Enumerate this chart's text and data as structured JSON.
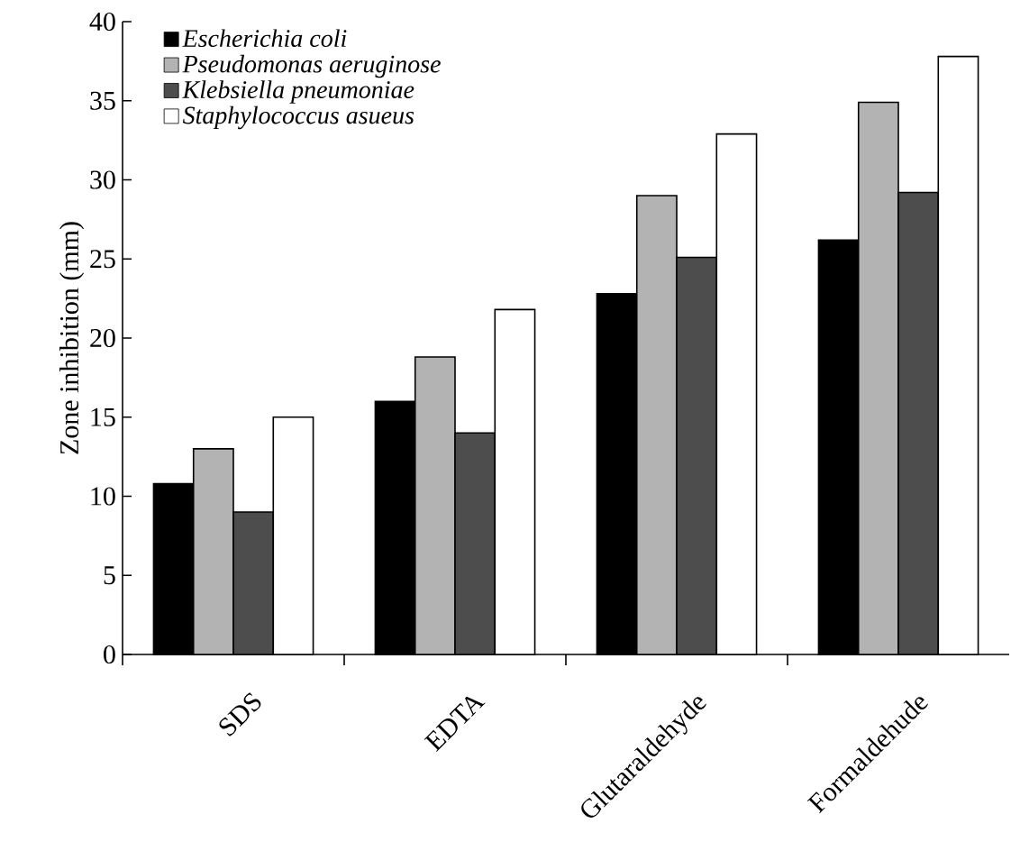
{
  "chart_data": {
    "type": "bar",
    "ylabel": "Zone inhibition (mm)",
    "categories": [
      "SDS",
      "EDTA",
      "Glutaraldehyde",
      "Formaldehude"
    ],
    "series": [
      {
        "name": "Escherichia coli",
        "color": "#000000",
        "values": [
          10.8,
          16,
          22.8,
          26.2
        ]
      },
      {
        "name": "Pseudomonas aeruginose",
        "color": "#b3b3b3",
        "values": [
          13,
          18.8,
          29,
          34.9
        ]
      },
      {
        "name": "Klebsiella pneumoniae",
        "color": "#4d4d4d",
        "values": [
          9,
          14,
          25.1,
          29.2
        ]
      },
      {
        "name": "Staphylococcus asueus",
        "color": "#ffffff",
        "values": [
          15,
          21.8,
          32.9,
          37.8
        ]
      }
    ],
    "ylim": [
      0,
      40
    ],
    "yticks": [
      0,
      5,
      10,
      15,
      20,
      25,
      30,
      35,
      40
    ],
    "legend": "top left",
    "grid": false
  }
}
